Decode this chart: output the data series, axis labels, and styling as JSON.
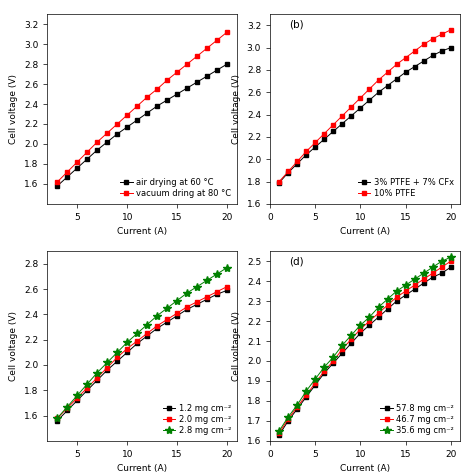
{
  "subplot_a": {
    "label": "",
    "x_label": "Current (A)",
    "y_label": "Cell voltage (V)",
    "xlim": [
      2,
      21
    ],
    "ylim": [
      1.4,
      3.3
    ],
    "xticks": [
      5,
      10,
      15,
      20
    ],
    "yticks": [
      1.6,
      1.8,
      2.0,
      2.2,
      2.4,
      2.6,
      2.8,
      3.0,
      3.2
    ],
    "series": [
      {
        "label": "air drying at 60 °C",
        "color": "black",
        "marker": "s",
        "x": [
          3,
          4,
          5,
          6,
          7,
          8,
          9,
          10,
          11,
          12,
          13,
          14,
          15,
          16,
          17,
          18,
          19,
          20
        ],
        "y": [
          1.58,
          1.67,
          1.76,
          1.85,
          1.94,
          2.02,
          2.1,
          2.17,
          2.24,
          2.31,
          2.38,
          2.44,
          2.5,
          2.56,
          2.62,
          2.68,
          2.74,
          2.8
        ]
      },
      {
        "label": "vacuum dring at 80 °C",
        "color": "red",
        "marker": "s",
        "x": [
          3,
          4,
          5,
          6,
          7,
          8,
          9,
          10,
          11,
          12,
          13,
          14,
          15,
          16,
          17,
          18,
          19,
          20
        ],
        "y": [
          1.62,
          1.72,
          1.82,
          1.92,
          2.02,
          2.11,
          2.2,
          2.29,
          2.38,
          2.47,
          2.55,
          2.64,
          2.72,
          2.8,
          2.88,
          2.96,
          3.04,
          3.12
        ]
      }
    ]
  },
  "subplot_b": {
    "label": "(b)",
    "x_label": "Current (A)",
    "y_label": "Cell voltage (V)",
    "xlim": [
      0,
      21
    ],
    "ylim": [
      1.6,
      3.3
    ],
    "xticks": [
      0,
      5,
      10,
      15,
      20
    ],
    "yticks": [
      1.6,
      1.8,
      2.0,
      2.2,
      2.4,
      2.6,
      2.8,
      3.0,
      3.2
    ],
    "series": [
      {
        "label": "3% PTFE + 7% CFx",
        "color": "black",
        "marker": "s",
        "x": [
          1,
          2,
          3,
          4,
          5,
          6,
          7,
          8,
          9,
          10,
          11,
          12,
          13,
          14,
          15,
          16,
          17,
          18,
          19,
          20
        ],
        "y": [
          1.79,
          1.88,
          1.96,
          2.04,
          2.11,
          2.18,
          2.25,
          2.32,
          2.39,
          2.46,
          2.53,
          2.6,
          2.66,
          2.72,
          2.78,
          2.83,
          2.88,
          2.93,
          2.97,
          3.0
        ]
      },
      {
        "label": "10% PTFE",
        "color": "red",
        "marker": "s",
        "x": [
          1,
          2,
          3,
          4,
          5,
          6,
          7,
          8,
          9,
          10,
          11,
          12,
          13,
          14,
          15,
          16,
          17,
          18,
          19,
          20
        ],
        "y": [
          1.8,
          1.89,
          1.98,
          2.07,
          2.15,
          2.23,
          2.31,
          2.39,
          2.47,
          2.55,
          2.63,
          2.71,
          2.78,
          2.85,
          2.91,
          2.97,
          3.03,
          3.08,
          3.12,
          3.16
        ]
      }
    ]
  },
  "subplot_c": {
    "label": "",
    "x_label": "Current (A)",
    "y_label": "Cell voltage (V)",
    "xlim": [
      2,
      21
    ],
    "ylim": [
      1.4,
      2.9
    ],
    "xticks": [
      5,
      10,
      15,
      20
    ],
    "yticks": [
      1.6,
      1.8,
      2.0,
      2.2,
      2.4,
      2.6,
      2.8
    ],
    "series": [
      {
        "label": "1.2 mg cm⁻²",
        "color": "black",
        "marker": "s",
        "x": [
          3,
          4,
          5,
          6,
          7,
          8,
          9,
          10,
          11,
          12,
          13,
          14,
          15,
          16,
          17,
          18,
          19,
          20
        ],
        "y": [
          1.56,
          1.64,
          1.72,
          1.8,
          1.88,
          1.96,
          2.03,
          2.1,
          2.17,
          2.23,
          2.29,
          2.34,
          2.39,
          2.44,
          2.48,
          2.52,
          2.56,
          2.59
        ]
      },
      {
        "label": "2.0 mg cm⁻²",
        "color": "red",
        "marker": "s",
        "x": [
          3,
          4,
          5,
          6,
          7,
          8,
          9,
          10,
          11,
          12,
          13,
          14,
          15,
          16,
          17,
          18,
          19,
          20
        ],
        "y": [
          1.58,
          1.66,
          1.74,
          1.82,
          1.9,
          1.98,
          2.06,
          2.13,
          2.19,
          2.25,
          2.31,
          2.36,
          2.41,
          2.46,
          2.5,
          2.54,
          2.58,
          2.62
        ]
      },
      {
        "label": "2.8 mg cm⁻²",
        "color": "green",
        "marker": "*",
        "x": [
          3,
          4,
          5,
          6,
          7,
          8,
          9,
          10,
          11,
          12,
          13,
          14,
          15,
          16,
          17,
          18,
          19,
          20
        ],
        "y": [
          1.58,
          1.67,
          1.76,
          1.85,
          1.94,
          2.02,
          2.1,
          2.18,
          2.25,
          2.32,
          2.39,
          2.45,
          2.51,
          2.57,
          2.62,
          2.67,
          2.72,
          2.77
        ]
      }
    ]
  },
  "subplot_d": {
    "label": "(d)",
    "x_label": "Current (A)",
    "y_label": "Cell voltage (V)",
    "xlim": [
      0,
      21
    ],
    "ylim": [
      1.6,
      2.55
    ],
    "xticks": [
      0,
      5,
      10,
      15,
      20
    ],
    "yticks": [
      1.6,
      1.7,
      1.8,
      1.9,
      2.0,
      2.1,
      2.2,
      2.3,
      2.4,
      2.5
    ],
    "series": [
      {
        "label": "57.8 mg cm⁻²",
        "color": "black",
        "marker": "s",
        "x": [
          1,
          2,
          3,
          4,
          5,
          6,
          7,
          8,
          9,
          10,
          11,
          12,
          13,
          14,
          15,
          16,
          17,
          18,
          19,
          20
        ],
        "y": [
          1.63,
          1.7,
          1.76,
          1.82,
          1.88,
          1.94,
          1.99,
          2.04,
          2.09,
          2.14,
          2.18,
          2.22,
          2.26,
          2.3,
          2.33,
          2.36,
          2.39,
          2.42,
          2.44,
          2.47
        ]
      },
      {
        "label": "46.7 mg cm⁻²",
        "color": "red",
        "marker": "s",
        "x": [
          1,
          2,
          3,
          4,
          5,
          6,
          7,
          8,
          9,
          10,
          11,
          12,
          13,
          14,
          15,
          16,
          17,
          18,
          19,
          20
        ],
        "y": [
          1.64,
          1.71,
          1.77,
          1.83,
          1.89,
          1.95,
          2.0,
          2.06,
          2.11,
          2.16,
          2.2,
          2.24,
          2.28,
          2.32,
          2.35,
          2.38,
          2.41,
          2.44,
          2.47,
          2.5
        ]
      },
      {
        "label": "35.6 mg cm⁻²",
        "color": "green",
        "marker": "*",
        "x": [
          1,
          2,
          3,
          4,
          5,
          6,
          7,
          8,
          9,
          10,
          11,
          12,
          13,
          14,
          15,
          16,
          17,
          18,
          19,
          20
        ],
        "y": [
          1.65,
          1.72,
          1.78,
          1.85,
          1.91,
          1.97,
          2.02,
          2.08,
          2.13,
          2.18,
          2.22,
          2.27,
          2.31,
          2.35,
          2.38,
          2.41,
          2.44,
          2.47,
          2.5,
          2.52
        ]
      }
    ]
  },
  "bg_color": "#ffffff",
  "font_size": 6.5,
  "marker_size": 3.5,
  "line_width": 0.7
}
